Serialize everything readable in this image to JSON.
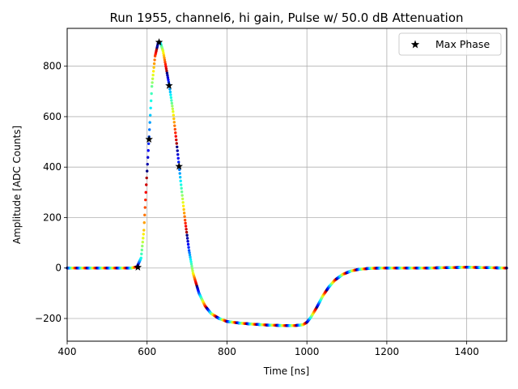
{
  "chart_data": {
    "type": "scatter",
    "title": "Run 1955, channel6, hi gain, Pulse w/ 50.0 dB Attenuation",
    "xlabel": "Time [ns]",
    "ylabel": "Amplitude [ADC Counts]",
    "xlim": [
      400,
      1500
    ],
    "ylim": [
      -290,
      950
    ],
    "xticks": [
      400,
      600,
      800,
      1000,
      1200,
      1400
    ],
    "yticks": [
      -200,
      0,
      200,
      400,
      600,
      800
    ],
    "xtick_labels": [
      "400",
      "600",
      "800",
      "1000",
      "1200",
      "1400"
    ],
    "ytick_labels": [
      "−200",
      "0",
      "200",
      "400",
      "600",
      "800"
    ],
    "grid": true,
    "legend": {
      "placement": "top-right",
      "entries": [
        "Max Phase"
      ]
    },
    "colormap": "jet",
    "waveform": {
      "x": [
        400,
        500,
        560,
        575,
        585,
        592,
        598,
        605,
        612,
        620,
        628,
        634,
        640,
        648,
        656,
        665,
        675,
        685,
        695,
        705,
        715,
        730,
        745,
        760,
        780,
        800,
        830,
        860,
        900,
        940,
        970,
        990,
        1000,
        1010,
        1025,
        1040,
        1055,
        1070,
        1090,
        1110,
        1130,
        1160,
        1200,
        1300,
        1400,
        1500
      ],
      "y": [
        0,
        0,
        0,
        5,
        40,
        150,
        330,
        520,
        720,
        840,
        895,
        890,
        860,
        790,
        720,
        620,
        480,
        330,
        190,
        70,
        -20,
        -100,
        -150,
        -180,
        -200,
        -212,
        -218,
        -222,
        -226,
        -228,
        -228,
        -225,
        -215,
        -195,
        -155,
        -110,
        -75,
        -48,
        -25,
        -12,
        -5,
        -1,
        0,
        0,
        3,
        0
      ]
    },
    "max_phase": {
      "name": "Max Phase",
      "x": [
        577,
        605,
        630,
        655,
        680
      ],
      "y": [
        3,
        510,
        895,
        723,
        403
      ]
    }
  }
}
